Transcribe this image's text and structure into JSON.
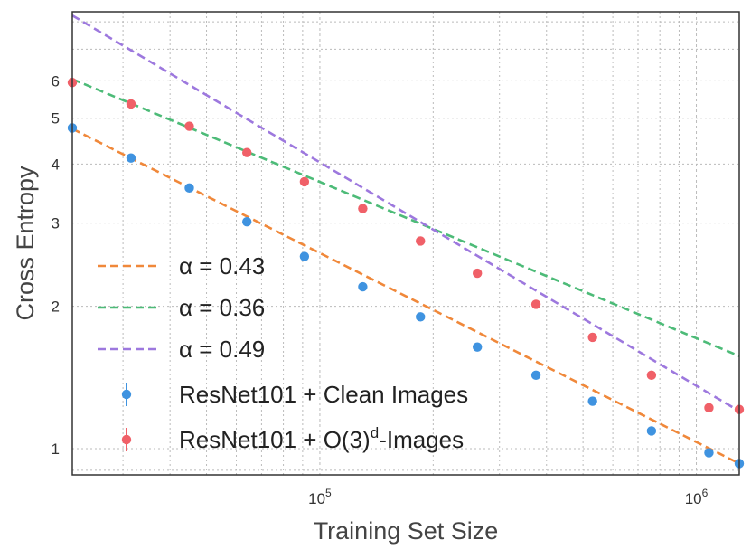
{
  "chart_data": {
    "type": "scatter",
    "xlabel": "Training Set Size",
    "ylabel": "Cross Entropy",
    "xscale": "log",
    "yscale": "log",
    "xlim": [
      22000,
      1300000
    ],
    "ylim": [
      0.88,
      8.4
    ],
    "x_ticks": [
      {
        "value": 100000,
        "base": "10",
        "exp": "5"
      },
      {
        "value": 1000000,
        "base": "10",
        "exp": "6"
      }
    ],
    "y_ticks": [
      {
        "value": 1,
        "label": "1"
      },
      {
        "value": 2,
        "label": "2"
      },
      {
        "value": 3,
        "label": "3"
      },
      {
        "value": 4,
        "label": "4"
      },
      {
        "value": 5,
        "label": "5"
      },
      {
        "value": 6,
        "label": "6"
      }
    ],
    "grid": true,
    "legend_position": "lower-left",
    "fits": [
      {
        "label": "α = 0.43",
        "color": "#f0883a",
        "x_start": 22000,
        "y_start": 4.75,
        "x_end": 1300000,
        "y_end": 0.93
      },
      {
        "label": "α = 0.36",
        "color": "#4dbb78",
        "x_start": 22000,
        "y_start": 6.05,
        "x_end": 1300000,
        "y_end": 1.57
      },
      {
        "label": "α = 0.49",
        "color": "#9d78de",
        "x_start": 22000,
        "y_start": 8.25,
        "x_end": 1300000,
        "y_end": 1.2
      }
    ],
    "series": [
      {
        "name": "ResNet101 + Clean Images",
        "color": "#3f93e0",
        "x": [
          22000,
          31500,
          45000,
          64000,
          91000,
          130000,
          185000,
          262000,
          375000,
          530000,
          760000,
          1080000,
          1300000
        ],
        "y": [
          4.77,
          4.12,
          3.56,
          3.02,
          2.55,
          2.2,
          1.9,
          1.64,
          1.43,
          1.26,
          1.09,
          0.98,
          0.93
        ]
      },
      {
        "name_prefix": "ResNet101 + O(3)",
        "name_sup": "d",
        "name_suffix": "-Images",
        "color": "#f06068",
        "x": [
          22000,
          31500,
          45000,
          64000,
          91000,
          130000,
          185000,
          262000,
          375000,
          530000,
          760000,
          1080000,
          1300000
        ],
        "y": [
          5.95,
          5.36,
          4.81,
          4.23,
          3.67,
          3.22,
          2.75,
          2.35,
          2.02,
          1.72,
          1.43,
          1.22,
          1.21
        ]
      }
    ]
  }
}
